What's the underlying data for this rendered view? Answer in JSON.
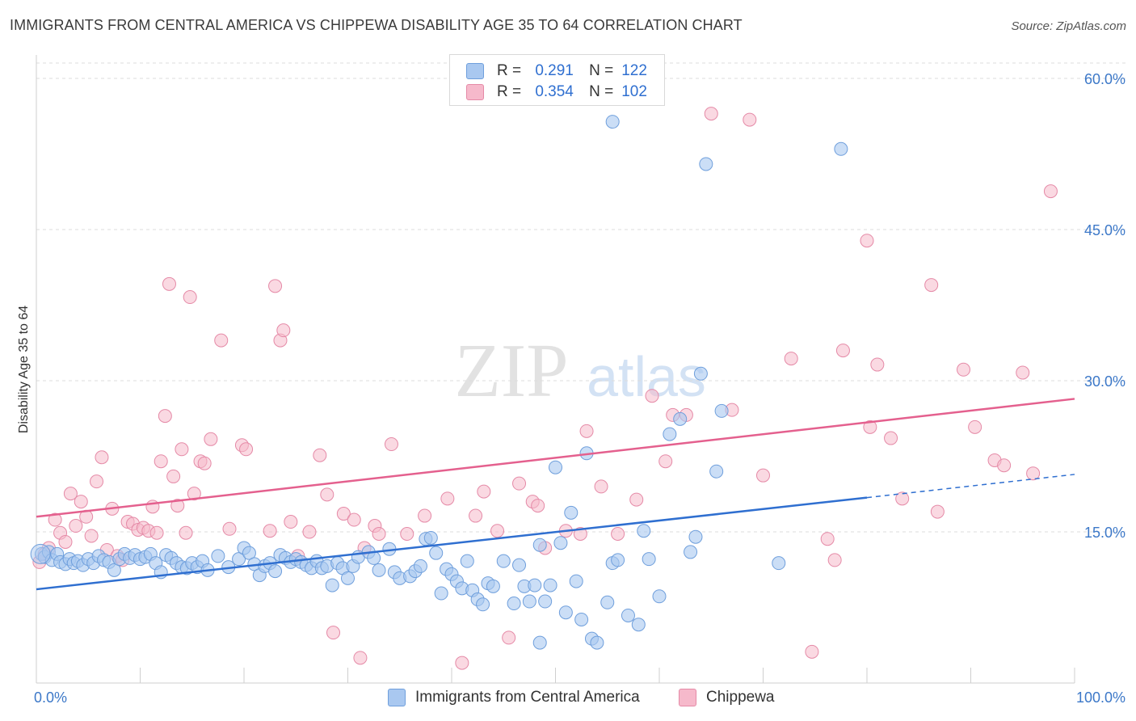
{
  "title": "IMMIGRANTS FROM CENTRAL AMERICA VS CHIPPEWA DISABILITY AGE 35 TO 64 CORRELATION CHART",
  "source": "Source: ZipAtlas.com",
  "watermark": {
    "zip": "ZIP",
    "atlas": "atlas"
  },
  "legend": {
    "rows": [
      {
        "r_label": "R =",
        "r_value": "0.291",
        "n_label": "N =",
        "n_value": "122"
      },
      {
        "r_label": "R =",
        "r_value": "0.354",
        "n_label": "N =",
        "n_value": "102"
      }
    ]
  },
  "colors": {
    "blue_fill": "#a9c8f0",
    "blue_stroke": "#6f9fdc",
    "blue_line": "#2f6fd0",
    "pink_fill": "#f6b9cb",
    "pink_stroke": "#e58aa7",
    "pink_line": "#e4608e",
    "tick_text": "#3c78c8",
    "grid": "#dcdcdc"
  },
  "chart_data": {
    "type": "scatter",
    "title": "IMMIGRANTS FROM CENTRAL AMERICA VS CHIPPEWA DISABILITY AGE 35 TO 64 CORRELATION CHART",
    "xlabel": "",
    "ylabel": "Disability Age 35 to 64",
    "xlim": [
      0,
      100
    ],
    "ylim": [
      0,
      60
    ],
    "x_tick_labels": [
      "0.0%",
      "100.0%"
    ],
    "y_tick_labels": [
      "15.0%",
      "30.0%",
      "45.0%",
      "60.0%"
    ],
    "y_ticks": [
      15,
      30,
      45,
      60
    ],
    "grid": true,
    "legend_position": "top-center",
    "series": [
      {
        "name": "Immigrants from Central America",
        "r": 0.291,
        "n": 122,
        "trend": {
          "x0": 0,
          "y0": 9.3,
          "x1": 80,
          "y1": 18.4,
          "dashed_to_x": 100,
          "dashed_to_y": 20.7
        },
        "points": [
          [
            0.5,
            12.8
          ],
          [
            0.8,
            12.5
          ],
          [
            1.2,
            13.0
          ],
          [
            1.5,
            12.2
          ],
          [
            2.0,
            12.8
          ],
          [
            2.3,
            12.0
          ],
          [
            2.8,
            11.8
          ],
          [
            3.2,
            12.3
          ],
          [
            3.6,
            11.9
          ],
          [
            4.0,
            12.1
          ],
          [
            4.5,
            11.7
          ],
          [
            5.0,
            12.3
          ],
          [
            5.5,
            11.9
          ],
          [
            6.0,
            12.6
          ],
          [
            6.5,
            12.2
          ],
          [
            7.0,
            12.0
          ],
          [
            7.5,
            11.2
          ],
          [
            8.0,
            12.3
          ],
          [
            8.5,
            12.8
          ],
          [
            9.0,
            12.4
          ],
          [
            9.5,
            12.7
          ],
          [
            10.0,
            12.3
          ],
          [
            10.5,
            12.5
          ],
          [
            11.0,
            12.8
          ],
          [
            11.5,
            11.9
          ],
          [
            12.0,
            11.0
          ],
          [
            12.5,
            12.7
          ],
          [
            13.0,
            12.4
          ],
          [
            13.5,
            11.9
          ],
          [
            14.0,
            11.5
          ],
          [
            14.5,
            11.4
          ],
          [
            15.0,
            11.9
          ],
          [
            15.5,
            11.5
          ],
          [
            16.0,
            12.1
          ],
          [
            16.5,
            11.2
          ],
          [
            17.5,
            12.6
          ],
          [
            18.5,
            11.5
          ],
          [
            19.5,
            12.3
          ],
          [
            20.0,
            13.4
          ],
          [
            20.5,
            12.9
          ],
          [
            21.0,
            11.8
          ],
          [
            21.5,
            10.7
          ],
          [
            22.0,
            11.6
          ],
          [
            22.5,
            11.9
          ],
          [
            23.0,
            11.1
          ],
          [
            23.5,
            12.7
          ],
          [
            24.0,
            12.4
          ],
          [
            24.5,
            12.0
          ],
          [
            25.0,
            12.3
          ],
          [
            25.5,
            12.0
          ],
          [
            26.0,
            11.7
          ],
          [
            26.5,
            11.4
          ],
          [
            27.0,
            12.1
          ],
          [
            27.5,
            11.4
          ],
          [
            28.0,
            11.6
          ],
          [
            28.5,
            9.7
          ],
          [
            29.0,
            11.9
          ],
          [
            29.5,
            11.4
          ],
          [
            30.0,
            10.4
          ],
          [
            30.5,
            11.6
          ],
          [
            31.0,
            12.5
          ],
          [
            32.0,
            13.0
          ],
          [
            32.5,
            12.4
          ],
          [
            33.0,
            11.2
          ],
          [
            34.0,
            13.3
          ],
          [
            34.5,
            11.0
          ],
          [
            35.0,
            10.4
          ],
          [
            36.0,
            10.6
          ],
          [
            36.5,
            11.1
          ],
          [
            37.0,
            11.6
          ],
          [
            37.5,
            14.3
          ],
          [
            38.0,
            14.4
          ],
          [
            38.5,
            12.9
          ],
          [
            39.0,
            8.9
          ],
          [
            39.5,
            11.3
          ],
          [
            40.0,
            10.8
          ],
          [
            40.5,
            10.1
          ],
          [
            41.0,
            9.4
          ],
          [
            41.5,
            12.1
          ],
          [
            42.0,
            9.2
          ],
          [
            42.5,
            8.3
          ],
          [
            43.0,
            7.8
          ],
          [
            43.5,
            9.9
          ],
          [
            44.0,
            9.6
          ],
          [
            45.0,
            12.1
          ],
          [
            46.0,
            7.9
          ],
          [
            46.5,
            11.7
          ],
          [
            47.0,
            9.6
          ],
          [
            47.5,
            8.1
          ],
          [
            48.0,
            9.7
          ],
          [
            48.5,
            13.7
          ],
          [
            49.0,
            8.1
          ],
          [
            49.5,
            9.7
          ],
          [
            50.0,
            21.4
          ],
          [
            50.5,
            13.9
          ],
          [
            51.0,
            7.0
          ],
          [
            51.5,
            16.9
          ],
          [
            52.0,
            10.1
          ],
          [
            52.5,
            6.3
          ],
          [
            53.0,
            22.8
          ],
          [
            53.5,
            4.4
          ],
          [
            54.0,
            4.0
          ],
          [
            55.0,
            8.0
          ],
          [
            55.5,
            11.9
          ],
          [
            56.0,
            12.2
          ],
          [
            57.0,
            6.7
          ],
          [
            58.0,
            5.8
          ],
          [
            58.5,
            15.1
          ],
          [
            59.0,
            12.3
          ],
          [
            60.0,
            8.6
          ],
          [
            61.0,
            24.7
          ],
          [
            62.0,
            26.2
          ],
          [
            63.0,
            13.0
          ],
          [
            63.5,
            14.5
          ],
          [
            64.0,
            30.7
          ],
          [
            64.5,
            51.5
          ],
          [
            65.5,
            21.0
          ],
          [
            66.0,
            27.0
          ],
          [
            71.5,
            11.9
          ],
          [
            77.5,
            53.0
          ],
          [
            55.5,
            55.7
          ],
          [
            48.5,
            4.0
          ]
        ]
      },
      {
        "name": "Chippewa",
        "r": 0.354,
        "n": 102,
        "trend": {
          "x0": 0,
          "y0": 16.5,
          "x1": 100,
          "y1": 28.2
        },
        "points": [
          [
            0.3,
            12.0
          ],
          [
            0.8,
            12.8
          ],
          [
            1.2,
            13.4
          ],
          [
            1.8,
            16.2
          ],
          [
            2.3,
            14.9
          ],
          [
            2.8,
            14.0
          ],
          [
            3.3,
            18.8
          ],
          [
            3.8,
            15.6
          ],
          [
            4.3,
            18.0
          ],
          [
            4.8,
            16.5
          ],
          [
            5.3,
            14.6
          ],
          [
            5.8,
            20.0
          ],
          [
            6.3,
            22.4
          ],
          [
            6.8,
            13.2
          ],
          [
            7.3,
            17.3
          ],
          [
            7.8,
            12.6
          ],
          [
            8.3,
            12.2
          ],
          [
            8.8,
            16.0
          ],
          [
            9.3,
            15.8
          ],
          [
            9.8,
            15.2
          ],
          [
            10.3,
            15.4
          ],
          [
            10.8,
            15.1
          ],
          [
            11.2,
            17.5
          ],
          [
            11.6,
            14.9
          ],
          [
            12.0,
            22.0
          ],
          [
            12.4,
            26.5
          ],
          [
            12.8,
            39.6
          ],
          [
            13.2,
            20.5
          ],
          [
            13.6,
            17.6
          ],
          [
            14.0,
            23.2
          ],
          [
            14.4,
            14.9
          ],
          [
            14.8,
            38.3
          ],
          [
            15.2,
            18.8
          ],
          [
            15.8,
            22.0
          ],
          [
            16.2,
            21.8
          ],
          [
            16.8,
            24.2
          ],
          [
            17.8,
            34.0
          ],
          [
            18.6,
            15.3
          ],
          [
            19.8,
            23.6
          ],
          [
            20.2,
            23.2
          ],
          [
            22.5,
            15.1
          ],
          [
            23.0,
            39.4
          ],
          [
            23.5,
            34.0
          ],
          [
            23.8,
            35.0
          ],
          [
            24.5,
            16.0
          ],
          [
            25.2,
            12.6
          ],
          [
            26.3,
            15.0
          ],
          [
            27.3,
            22.6
          ],
          [
            28.0,
            18.7
          ],
          [
            28.6,
            5.0
          ],
          [
            29.6,
            16.8
          ],
          [
            30.6,
            16.2
          ],
          [
            31.2,
            2.5
          ],
          [
            31.6,
            13.4
          ],
          [
            32.6,
            15.6
          ],
          [
            33.0,
            14.8
          ],
          [
            34.2,
            23.7
          ],
          [
            35.7,
            14.8
          ],
          [
            37.4,
            16.6
          ],
          [
            39.6,
            18.3
          ],
          [
            41.0,
            2.0
          ],
          [
            42.3,
            16.6
          ],
          [
            43.1,
            19.0
          ],
          [
            44.4,
            15.1
          ],
          [
            45.5,
            4.5
          ],
          [
            46.5,
            19.8
          ],
          [
            47.8,
            18.0
          ],
          [
            48.3,
            17.6
          ],
          [
            49.0,
            13.4
          ],
          [
            51.0,
            15.1
          ],
          [
            52.4,
            14.8
          ],
          [
            53.0,
            25.0
          ],
          [
            54.4,
            19.5
          ],
          [
            56.0,
            14.8
          ],
          [
            57.8,
            18.2
          ],
          [
            59.3,
            28.5
          ],
          [
            60.6,
            22.0
          ],
          [
            61.3,
            26.6
          ],
          [
            62.6,
            26.6
          ],
          [
            65.0,
            56.5
          ],
          [
            67.0,
            27.1
          ],
          [
            68.7,
            55.9
          ],
          [
            70.0,
            20.6
          ],
          [
            72.7,
            32.2
          ],
          [
            74.7,
            3.1
          ],
          [
            76.2,
            14.3
          ],
          [
            76.9,
            12.2
          ],
          [
            77.7,
            33.0
          ],
          [
            80.0,
            43.9
          ],
          [
            80.3,
            25.4
          ],
          [
            81.0,
            31.6
          ],
          [
            82.3,
            24.3
          ],
          [
            83.4,
            18.3
          ],
          [
            86.2,
            39.5
          ],
          [
            86.8,
            17.0
          ],
          [
            89.3,
            31.1
          ],
          [
            90.4,
            25.4
          ],
          [
            92.3,
            22.1
          ],
          [
            93.2,
            21.6
          ],
          [
            95.0,
            30.8
          ],
          [
            96.0,
            20.8
          ],
          [
            97.7,
            48.8
          ]
        ]
      }
    ]
  },
  "bottom_legend": [
    {
      "label": "Immigrants from Central America"
    },
    {
      "label": "Chippewa"
    }
  ]
}
